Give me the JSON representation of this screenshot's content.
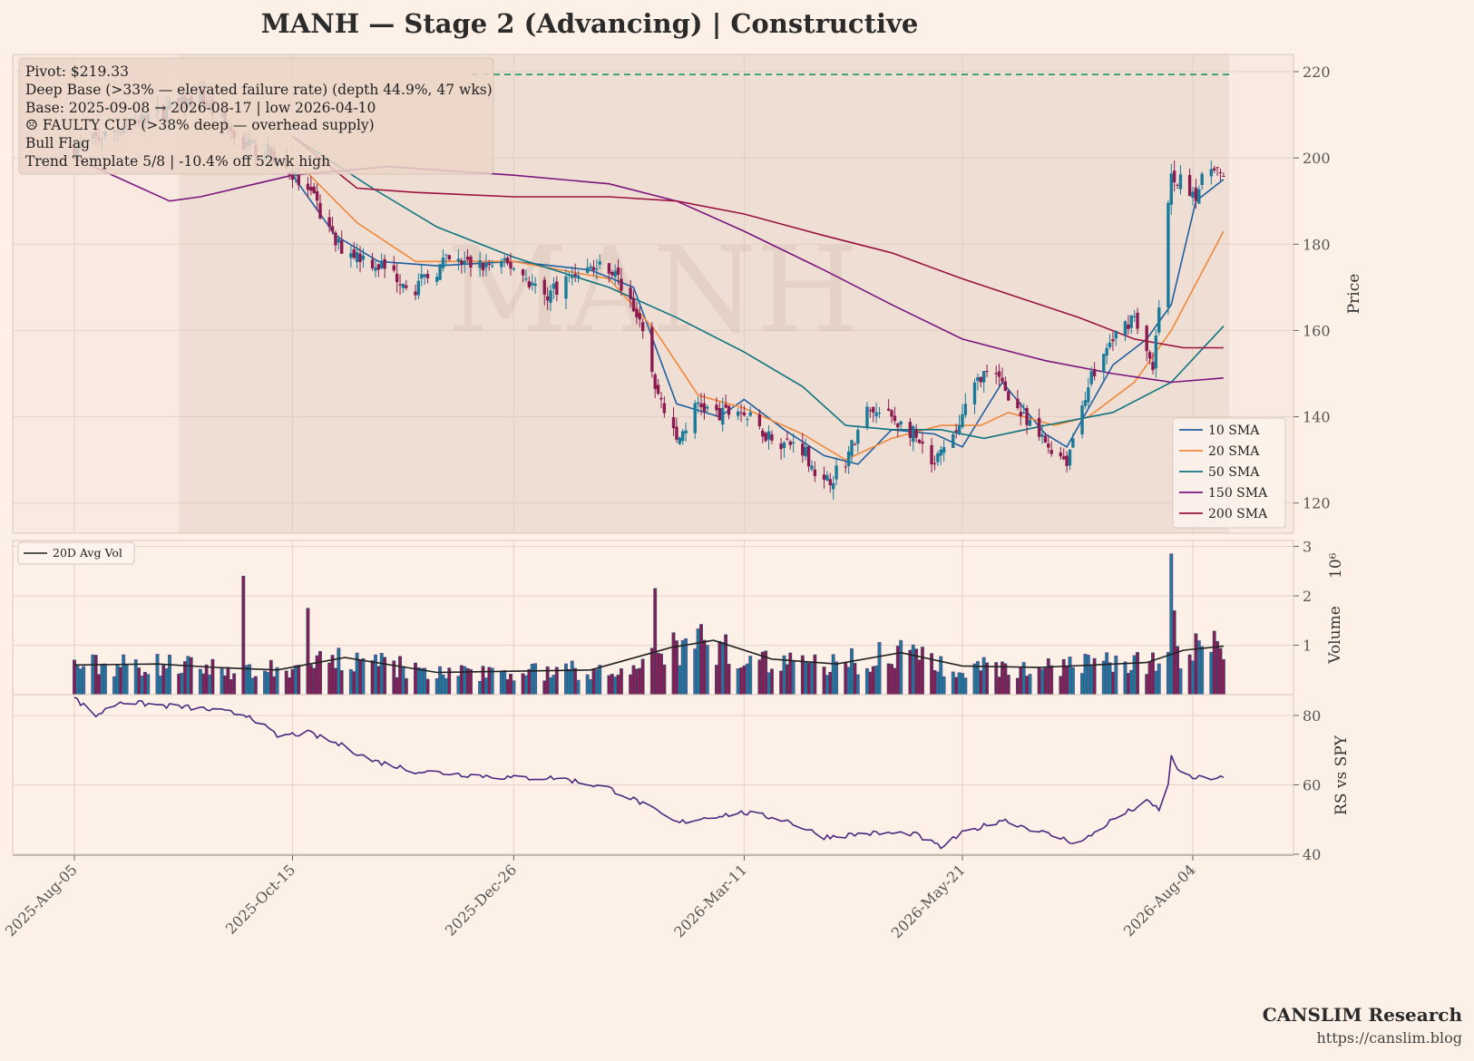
{
  "chart_data": {
    "type": "candlestick",
    "title": "MANH  —  Stage 2 (Advancing)  |  Constructive",
    "watermark": "MANH",
    "x_ticks": [
      "2025-Aug-05",
      "2025-Oct-15",
      "2025-Dec-26",
      "2026-Mar-11",
      "2026-May-21",
      "2026-Aug-04"
    ],
    "x_range": [
      "2025-08-05",
      "2026-08-15"
    ],
    "price_panel": {
      "ylabel": "Price",
      "ylim": [
        113,
        224
      ],
      "yticks": [
        120,
        140,
        160,
        180,
        200,
        220
      ],
      "pivot": 219.33,
      "base_shading": [
        "2025-09-08",
        "2026-08-17"
      ],
      "info_lines": [
        "Pivot: $219.33",
        "Deep Base (>33% — elevated failure rate)  (depth 44.9%, 47 wks)",
        "Base: 2025-09-08 → 2026-08-17  |  low 2026-04-10",
        "☹ FAULTY CUP (>38% deep — overhead supply)",
        "Bull Flag",
        "Trend Template 5/8  |  -10.4% off 52wk high"
      ],
      "close_path": [
        [
          "2025-08-05",
          202
        ],
        [
          "2025-08-26",
          209
        ],
        [
          "2025-09-15",
          214
        ],
        [
          "2025-09-29",
          203
        ],
        [
          "2025-10-08",
          201
        ],
        [
          "2025-10-15",
          196
        ],
        [
          "2025-10-22",
          190
        ],
        [
          "2025-10-29",
          180
        ],
        [
          "2025-11-10",
          176
        ],
        [
          "2025-11-24",
          170
        ],
        [
          "2025-12-04",
          176
        ],
        [
          "2025-12-15",
          175
        ],
        [
          "2025-12-26",
          175
        ],
        [
          "2026-01-05",
          168
        ],
        [
          "2026-01-16",
          174
        ],
        [
          "2026-01-26",
          175
        ],
        [
          "2026-02-03",
          166
        ],
        [
          "2026-02-10",
          148
        ],
        [
          "2026-02-17",
          134
        ],
        [
          "2026-02-24",
          143
        ],
        [
          "2026-03-03",
          140
        ],
        [
          "2026-03-09",
          142
        ],
        [
          "2026-03-16",
          137
        ],
        [
          "2026-03-24",
          134
        ],
        [
          "2026-03-30",
          133
        ],
        [
          "2026-04-06",
          124
        ],
        [
          "2026-04-13",
          130
        ],
        [
          "2026-04-20",
          141
        ],
        [
          "2026-04-28",
          140
        ],
        [
          "2026-05-05",
          136
        ],
        [
          "2026-05-11",
          128
        ],
        [
          "2026-05-18",
          135
        ],
        [
          "2026-05-27",
          150
        ],
        [
          "2026-06-03",
          148
        ],
        [
          "2026-06-11",
          138
        ],
        [
          "2026-06-17",
          134
        ],
        [
          "2026-06-24",
          130
        ],
        [
          "2026-07-01",
          148
        ],
        [
          "2026-07-09",
          158
        ],
        [
          "2026-07-16",
          164
        ],
        [
          "2026-07-22",
          150
        ],
        [
          "2026-07-28",
          196
        ],
        [
          "2026-08-05",
          192
        ],
        [
          "2026-08-11",
          199
        ],
        [
          "2026-08-14",
          194
        ]
      ],
      "moving_averages": [
        {
          "name": "10 SMA",
          "color": "#1f5fa0",
          "points": [
            [
              "2025-10-15",
              196
            ],
            [
              "2025-10-29",
              182
            ],
            [
              "2025-11-12",
              176
            ],
            [
              "2025-12-01",
              175
            ],
            [
              "2025-12-26",
              176
            ],
            [
              "2026-01-20",
              174
            ],
            [
              "2026-02-03",
              170
            ],
            [
              "2026-02-17",
              143
            ],
            [
              "2026-03-03",
              140
            ],
            [
              "2026-03-11",
              144
            ],
            [
              "2026-03-24",
              137
            ],
            [
              "2026-04-06",
              131
            ],
            [
              "2026-04-17",
              129
            ],
            [
              "2026-04-28",
              137
            ],
            [
              "2026-05-12",
              136
            ],
            [
              "2026-05-21",
              133
            ],
            [
              "2026-06-03",
              148
            ],
            [
              "2026-06-17",
              136
            ],
            [
              "2026-06-24",
              133
            ],
            [
              "2026-07-09",
              152
            ],
            [
              "2026-07-20",
              158
            ],
            [
              "2026-07-28",
              166
            ],
            [
              "2026-08-05",
              190
            ],
            [
              "2026-08-14",
              195
            ]
          ]
        },
        {
          "name": "20 SMA",
          "color": "#f0883a",
          "points": [
            [
              "2025-10-15",
              200
            ],
            [
              "2025-11-05",
              185
            ],
            [
              "2025-11-24",
              176
            ],
            [
              "2025-12-26",
              176
            ],
            [
              "2026-01-26",
              172
            ],
            [
              "2026-02-10",
              160
            ],
            [
              "2026-02-24",
              145
            ],
            [
              "2026-03-11",
              142
            ],
            [
              "2026-03-30",
              136
            ],
            [
              "2026-04-13",
              130
            ],
            [
              "2026-04-28",
              135
            ],
            [
              "2026-05-14",
              138
            ],
            [
              "2026-05-27",
              138
            ],
            [
              "2026-06-05",
              141
            ],
            [
              "2026-06-20",
              138
            ],
            [
              "2026-07-01",
              140
            ],
            [
              "2026-07-16",
              148
            ],
            [
              "2026-07-28",
              160
            ],
            [
              "2026-08-14",
              183
            ]
          ]
        },
        {
          "name": "50 SMA",
          "color": "#0e7480",
          "points": [
            [
              "2025-10-15",
              205
            ],
            [
              "2025-11-10",
              193
            ],
            [
              "2025-12-01",
              184
            ],
            [
              "2025-12-26",
              177
            ],
            [
              "2026-01-26",
              170
            ],
            [
              "2026-02-17",
              163
            ],
            [
              "2026-03-11",
              155
            ],
            [
              "2026-03-30",
              147
            ],
            [
              "2026-04-13",
              138
            ],
            [
              "2026-04-28",
              137
            ],
            [
              "2026-05-14",
              137
            ],
            [
              "2026-05-28",
              135
            ],
            [
              "2026-06-17",
              138
            ],
            [
              "2026-07-09",
              141
            ],
            [
              "2026-07-28",
              148
            ],
            [
              "2026-08-14",
              161
            ]
          ]
        },
        {
          "name": "150 SMA",
          "color": "#7a1680",
          "points": [
            [
              "2025-08-05",
              200
            ],
            [
              "2025-09-05",
              190
            ],
            [
              "2025-09-15",
              191
            ],
            [
              "2025-10-15",
              196
            ],
            [
              "2025-11-15",
              198
            ],
            [
              "2025-12-26",
              196
            ],
            [
              "2026-01-26",
              194
            ],
            [
              "2026-02-17",
              190
            ],
            [
              "2026-03-11",
              183
            ],
            [
              "2026-04-06",
              174
            ],
            [
              "2026-04-28",
              166
            ],
            [
              "2026-05-21",
              158
            ],
            [
              "2026-06-17",
              153
            ],
            [
              "2026-07-09",
              150
            ],
            [
              "2026-07-28",
              148
            ],
            [
              "2026-08-14",
              149
            ]
          ]
        },
        {
          "name": "200 SMA",
          "color": "#9a1240",
          "points": [
            [
              "2025-10-15",
              205
            ],
            [
              "2025-11-05",
              193
            ],
            [
              "2025-11-24",
              192
            ],
            [
              "2025-12-26",
              191
            ],
            [
              "2026-01-26",
              191
            ],
            [
              "2026-02-17",
              190
            ],
            [
              "2026-03-11",
              187
            ],
            [
              "2026-04-06",
              182
            ],
            [
              "2026-04-28",
              178
            ],
            [
              "2026-05-21",
              172
            ],
            [
              "2026-06-11",
              167
            ],
            [
              "2026-06-28",
              163
            ],
            [
              "2026-07-16",
              158
            ],
            [
              "2026-08-01",
              156
            ],
            [
              "2026-08-14",
              156
            ]
          ]
        }
      ]
    },
    "volume_panel": {
      "ylabel": "Volume",
      "scale_label": "10⁶",
      "ylim": [
        0,
        3
      ],
      "yticks": [
        1,
        2,
        3
      ],
      "avg_name": "20D Avg Vol",
      "avg_color": "#222222",
      "spikes": [
        [
          "2025-09-29",
          2.4
        ],
        [
          "2025-10-20",
          1.75
        ],
        [
          "2026-02-10",
          2.15
        ],
        [
          "2026-07-28",
          2.85
        ],
        [
          "2026-07-29",
          1.7
        ]
      ],
      "avg_path": [
        [
          "2025-08-05",
          0.6
        ],
        [
          "2025-09-01",
          0.62
        ],
        [
          "2025-09-20",
          0.55
        ],
        [
          "2025-10-10",
          0.5
        ],
        [
          "2025-11-01",
          0.75
        ],
        [
          "2025-12-01",
          0.45
        ],
        [
          "2026-01-20",
          0.5
        ],
        [
          "2026-02-15",
          0.95
        ],
        [
          "2026-03-01",
          1.1
        ],
        [
          "2026-03-20",
          0.72
        ],
        [
          "2026-04-10",
          0.62
        ],
        [
          "2026-05-01",
          0.85
        ],
        [
          "2026-05-21",
          0.58
        ],
        [
          "2026-06-15",
          0.55
        ],
        [
          "2026-07-20",
          0.65
        ],
        [
          "2026-08-01",
          0.9
        ],
        [
          "2026-08-14",
          0.98
        ]
      ]
    },
    "rs_panel": {
      "ylabel": "RS vs SPY",
      "color": "#4a2a80",
      "ylim": [
        40,
        86
      ],
      "yticks": [
        40,
        60,
        80
      ],
      "points": [
        [
          "2025-08-05",
          85
        ],
        [
          "2025-08-12",
          80
        ],
        [
          "2025-08-20",
          84
        ],
        [
          "2025-09-01",
          83
        ],
        [
          "2025-09-15",
          82
        ],
        [
          "2025-10-01",
          80
        ],
        [
          "2025-10-10",
          74
        ],
        [
          "2025-10-20",
          75
        ],
        [
          "2025-11-01",
          71
        ],
        [
          "2025-11-10",
          67
        ],
        [
          "2025-11-24",
          64
        ],
        [
          "2025-12-10",
          63
        ],
        [
          "2025-12-26",
          62
        ],
        [
          "2026-01-10",
          62
        ],
        [
          "2026-01-26",
          59
        ],
        [
          "2026-02-05",
          55
        ],
        [
          "2026-02-17",
          49
        ],
        [
          "2026-03-01",
          51
        ],
        [
          "2026-03-11",
          52
        ],
        [
          "2026-03-24",
          50
        ],
        [
          "2026-04-06",
          45
        ],
        [
          "2026-04-20",
          46
        ],
        [
          "2026-05-05",
          46
        ],
        [
          "2026-05-14",
          42
        ],
        [
          "2026-05-21",
          46
        ],
        [
          "2026-06-03",
          50
        ],
        [
          "2026-06-17",
          46
        ],
        [
          "2026-06-28",
          43
        ],
        [
          "2026-07-09",
          50
        ],
        [
          "2026-07-20",
          55
        ],
        [
          "2026-07-26",
          52
        ],
        [
          "2026-07-28",
          68
        ],
        [
          "2026-08-01",
          62
        ],
        [
          "2026-08-14",
          62
        ]
      ]
    }
  },
  "footer": {
    "brand": "CANSLIM Research",
    "url": "https://canslim.blog"
  },
  "colors": {
    "up": "#1a7a9a",
    "down": "#8a1a50",
    "pivot": "#1a9a5a",
    "grid": "#e6d6cc"
  }
}
